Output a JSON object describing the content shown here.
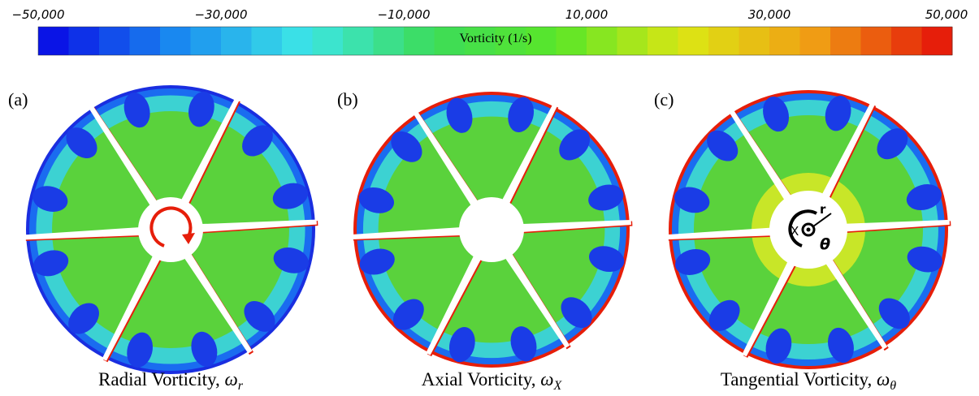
{
  "colorbar": {
    "label": "Vorticity (1/s)",
    "range": [
      -50000,
      50000
    ],
    "levels": 30,
    "colormap": [
      "#0a14e6",
      "#1a8cf0",
      "#3ce6e6",
      "#3cdc5a",
      "#5ae628",
      "#dce614",
      "#f0a014",
      "#e61e0a"
    ],
    "ticks": [
      {
        "value": -50000,
        "label": "−50,000"
      },
      {
        "value": -30000,
        "label": "−30,000"
      },
      {
        "value": -10000,
        "label": "−10,000"
      },
      {
        "value": 10000,
        "label": "10,000"
      },
      {
        "value": 30000,
        "label": "30,000"
      },
      {
        "value": 50000,
        "label": "50,000"
      }
    ]
  },
  "panels": [
    {
      "tag": "(a)",
      "caption": "Radial Vorticity, ",
      "symbol": "ω",
      "subscript": "r"
    },
    {
      "tag": "(b)",
      "caption": "Axial Vorticity, ",
      "symbol": "ω",
      "subscript": "X"
    },
    {
      "tag": "(c)",
      "caption": "Tangential Vorticity, ",
      "symbol": "ω",
      "subscript": "θ",
      "axes": {
        "x": "X",
        "r": "r",
        "theta": "θ"
      }
    }
  ]
}
